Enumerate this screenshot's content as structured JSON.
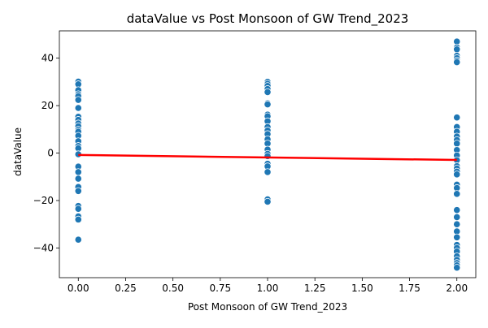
{
  "chart_data": {
    "type": "scatter",
    "title": "dataValue vs Post Monsoon of GW Trend_2023",
    "xlabel": "Post Monsoon of GW Trend_2023",
    "ylabel": "dataValue",
    "xlim": [
      -0.1,
      2.1
    ],
    "ylim": [
      -52.5,
      51.5
    ],
    "xticks": [
      0.0,
      0.25,
      0.5,
      0.75,
      1.0,
      1.25,
      1.5,
      1.75,
      2.0
    ],
    "xtick_labels": [
      "0.00",
      "0.25",
      "0.50",
      "0.75",
      "1.00",
      "1.25",
      "1.50",
      "1.75",
      "2.00"
    ],
    "yticks": [
      -40,
      -20,
      0,
      20,
      40
    ],
    "ytick_labels": [
      "−40",
      "−20",
      "0",
      "20",
      "40"
    ],
    "grid": false,
    "colors": {
      "points": "#1f77b4",
      "regression": "#ff0000",
      "edge": "#ffffff"
    },
    "series": [
      {
        "values": [
          {
            "x": 0,
            "y": 30.1
          },
          {
            "x": 0,
            "y": 29.0
          },
          {
            "x": 0,
            "y": 26.5
          },
          {
            "x": 0,
            "y": 24.8
          },
          {
            "x": 0,
            "y": 24.0
          },
          {
            "x": 0,
            "y": 22.4
          },
          {
            "x": 0,
            "y": 19.0
          },
          {
            "x": 0,
            "y": 15.3
          },
          {
            "x": 0,
            "y": 14.0
          },
          {
            "x": 0,
            "y": 12.5
          },
          {
            "x": 0,
            "y": 11.3
          },
          {
            "x": 0,
            "y": 9.8
          },
          {
            "x": 0,
            "y": 9.0
          },
          {
            "x": 0,
            "y": 7.3
          },
          {
            "x": 0,
            "y": 5.0
          },
          {
            "x": 0,
            "y": 3.0
          },
          {
            "x": 0,
            "y": 2.0
          },
          {
            "x": 0,
            "y": -0.5
          },
          {
            "x": 0,
            "y": -5.7
          },
          {
            "x": 0,
            "y": -8.0
          },
          {
            "x": 0,
            "y": -10.8
          },
          {
            "x": 0,
            "y": -14.3
          },
          {
            "x": 0,
            "y": -16.0
          },
          {
            "x": 0,
            "y": -22.3
          },
          {
            "x": 0,
            "y": -23.5
          },
          {
            "x": 0,
            "y": -26.7
          },
          {
            "x": 0,
            "y": -28.0
          },
          {
            "x": 0,
            "y": -36.5
          },
          {
            "x": 1,
            "y": 30.0
          },
          {
            "x": 1,
            "y": 29.2
          },
          {
            "x": 1,
            "y": 28.3
          },
          {
            "x": 1,
            "y": 27.0
          },
          {
            "x": 1,
            "y": 25.7
          },
          {
            "x": 1,
            "y": 21.0
          },
          {
            "x": 1,
            "y": 20.5
          },
          {
            "x": 1,
            "y": 16.2
          },
          {
            "x": 1,
            "y": 15.5
          },
          {
            "x": 1,
            "y": 13.4
          },
          {
            "x": 1,
            "y": 11.0
          },
          {
            "x": 1,
            "y": 9.5
          },
          {
            "x": 1,
            "y": 8.0
          },
          {
            "x": 1,
            "y": 5.8
          },
          {
            "x": 1,
            "y": 4.0
          },
          {
            "x": 1,
            "y": 1.5
          },
          {
            "x": 1,
            "y": -0.3
          },
          {
            "x": 1,
            "y": -1.3
          },
          {
            "x": 1,
            "y": -4.5
          },
          {
            "x": 1,
            "y": -5.6
          },
          {
            "x": 1,
            "y": -8.0
          },
          {
            "x": 1,
            "y": -19.5
          },
          {
            "x": 1,
            "y": -20.5
          },
          {
            "x": 2,
            "y": 47.0
          },
          {
            "x": 2,
            "y": 44.5
          },
          {
            "x": 2,
            "y": 43.7
          },
          {
            "x": 2,
            "y": 41.0
          },
          {
            "x": 2,
            "y": 40.0
          },
          {
            "x": 2,
            "y": 39.0
          },
          {
            "x": 2,
            "y": 38.3
          },
          {
            "x": 2,
            "y": 15.0
          },
          {
            "x": 2,
            "y": 11.0
          },
          {
            "x": 2,
            "y": 9.0
          },
          {
            "x": 2,
            "y": 7.0
          },
          {
            "x": 2,
            "y": 5.5
          },
          {
            "x": 2,
            "y": 4.0
          },
          {
            "x": 2,
            "y": 1.3
          },
          {
            "x": 2,
            "y": -1.0
          },
          {
            "x": 2,
            "y": -3.0
          },
          {
            "x": 2,
            "y": -5.5
          },
          {
            "x": 2,
            "y": -6.5
          },
          {
            "x": 2,
            "y": -7.8
          },
          {
            "x": 2,
            "y": -9.0
          },
          {
            "x": 2,
            "y": -13.3
          },
          {
            "x": 2,
            "y": -14.7
          },
          {
            "x": 2,
            "y": -17.2
          },
          {
            "x": 2,
            "y": -24.0
          },
          {
            "x": 2,
            "y": -27.0
          },
          {
            "x": 2,
            "y": -30.0
          },
          {
            "x": 2,
            "y": -33.0
          },
          {
            "x": 2,
            "y": -35.5
          },
          {
            "x": 2,
            "y": -38.7
          },
          {
            "x": 2,
            "y": -40.0
          },
          {
            "x": 2,
            "y": -41.5
          },
          {
            "x": 2,
            "y": -43.5
          },
          {
            "x": 2,
            "y": -45.0
          },
          {
            "x": 2,
            "y": -46.3
          },
          {
            "x": 2,
            "y": -47.3
          },
          {
            "x": 2,
            "y": -48.3
          }
        ]
      }
    ],
    "regression": {
      "x": [
        0,
        2
      ],
      "y": [
        -0.8,
        -2.9
      ]
    }
  }
}
